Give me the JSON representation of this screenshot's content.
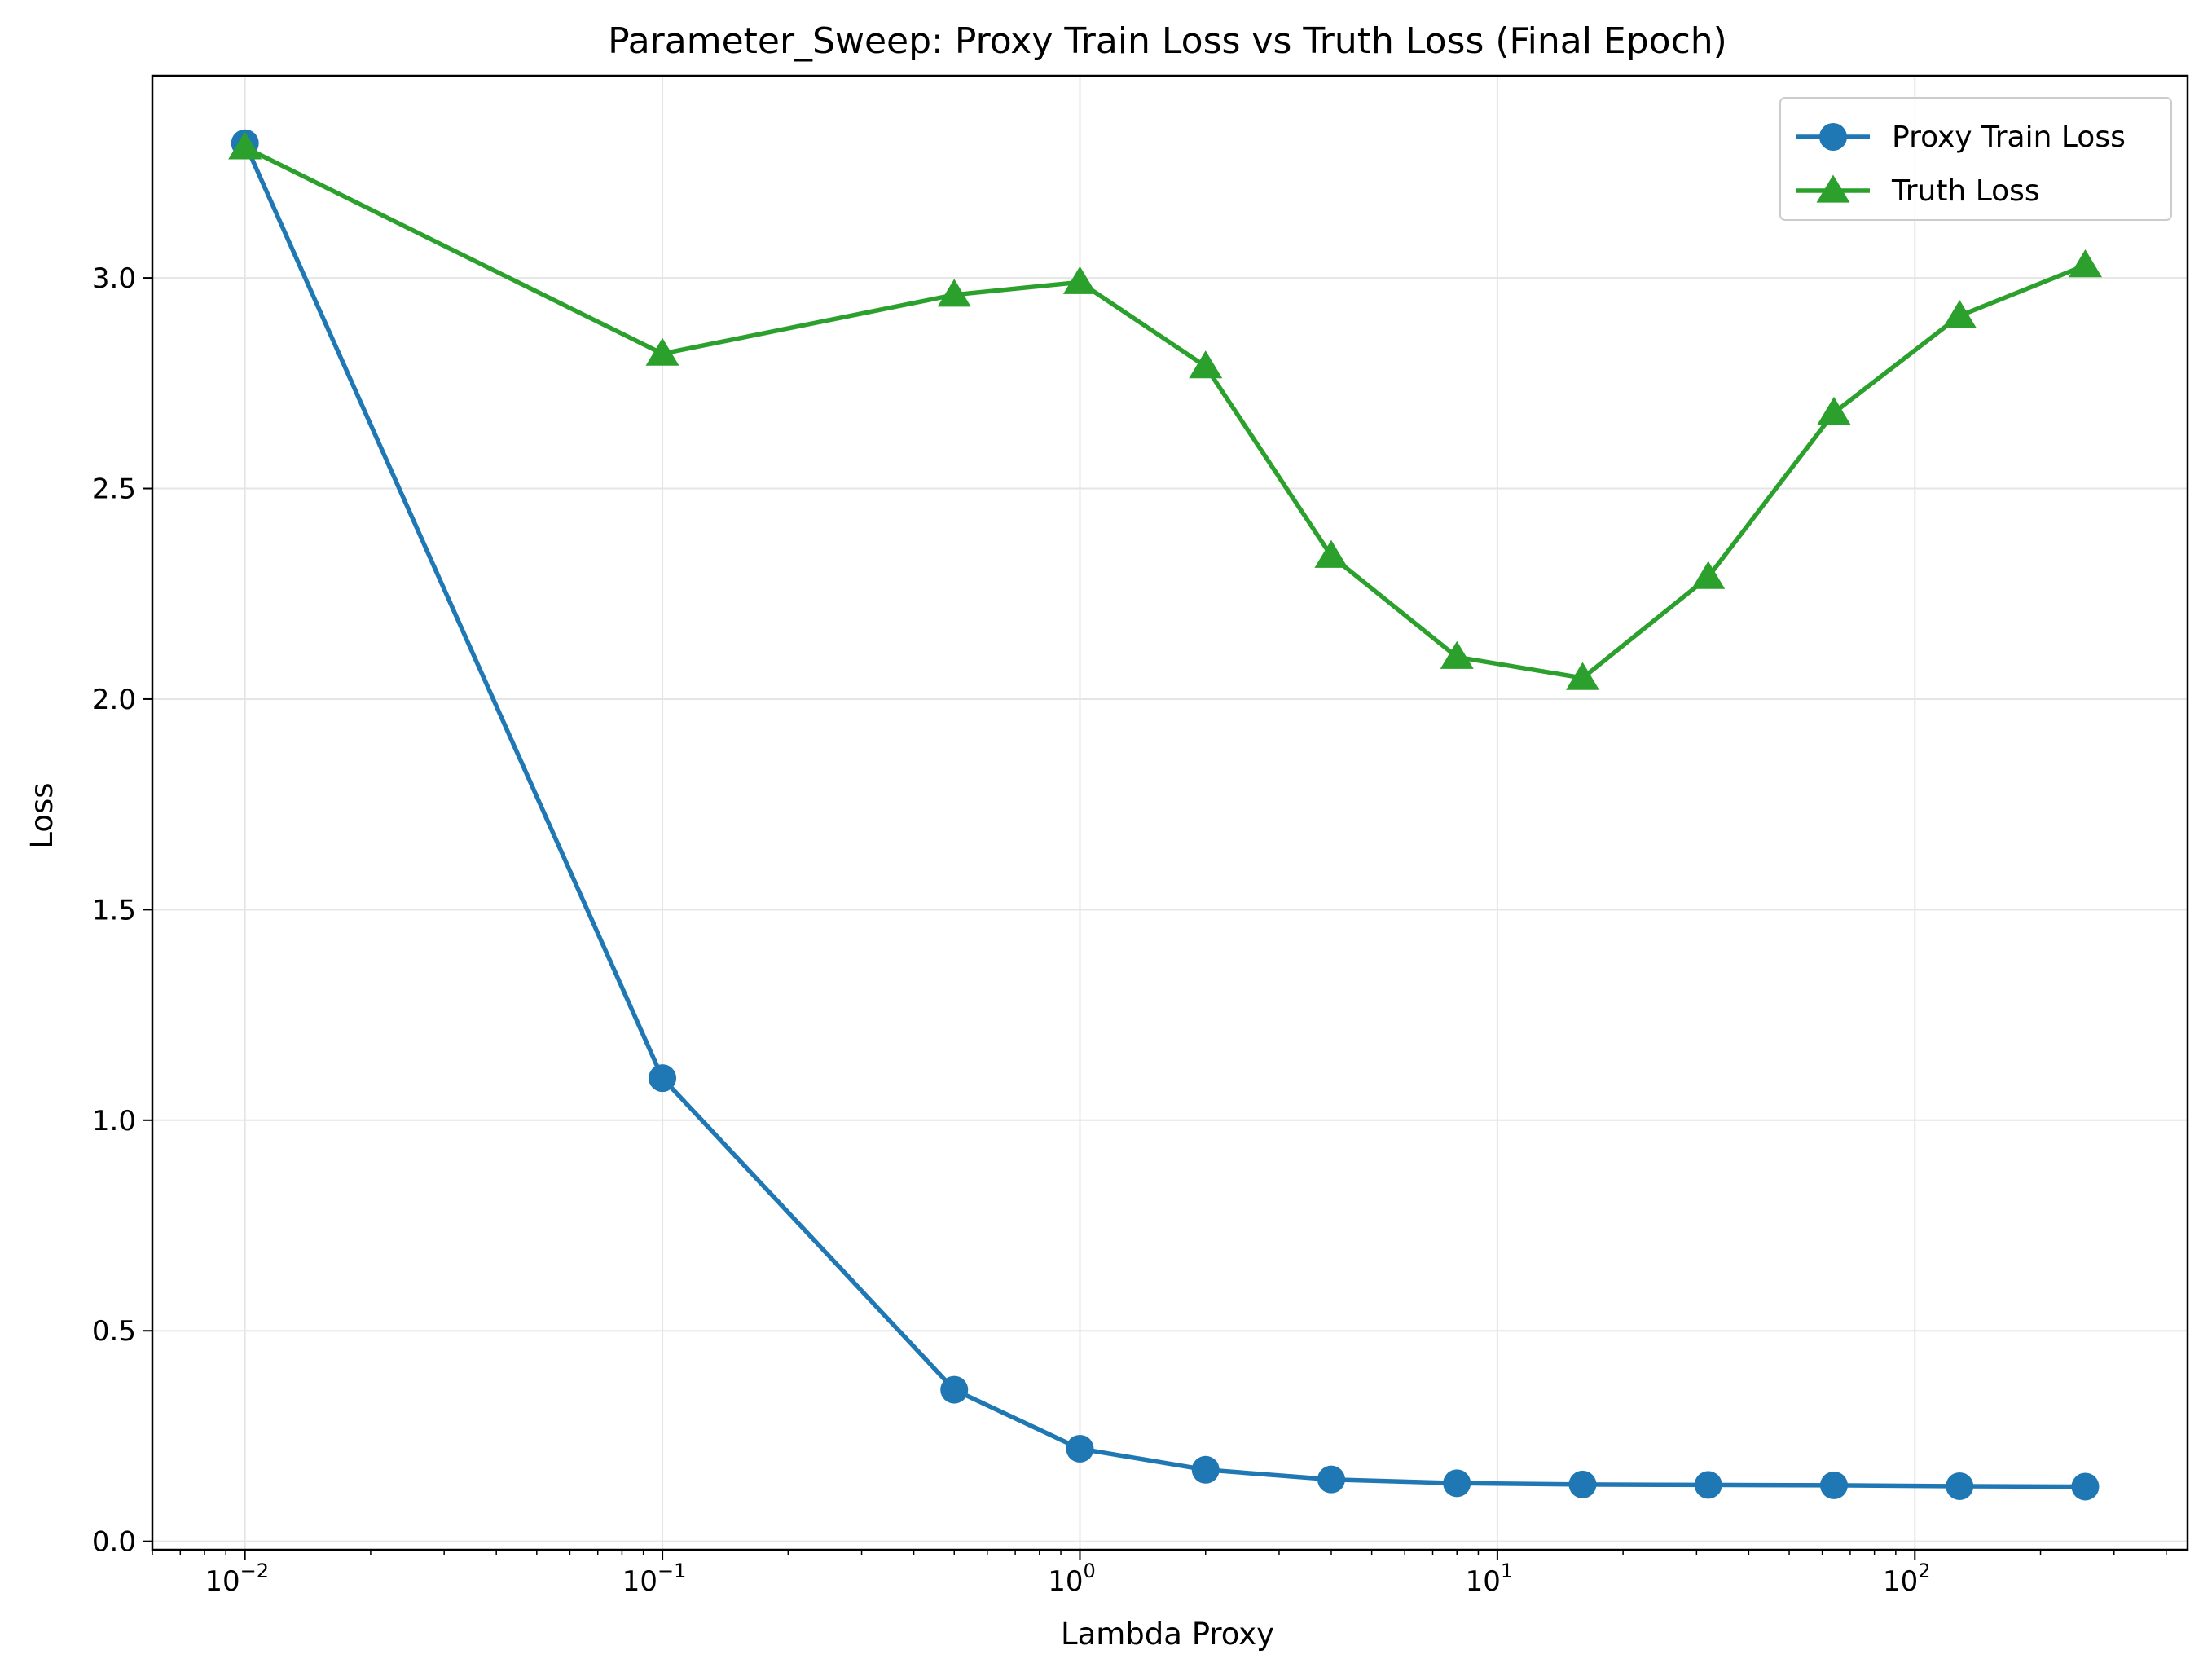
{
  "chart_data": {
    "type": "line",
    "title": "Parameter_Sweep: Proxy Train Loss vs Truth Loss (Final Epoch)",
    "xlabel": "Lambda Proxy",
    "ylabel": "Loss",
    "xscale": "log",
    "xlim": [
      0.006,
      450
    ],
    "ylim": [
      -0.02,
      3.48
    ],
    "x_ticks": [
      {
        "value": 0.01,
        "base": "10",
        "exp": "−2"
      },
      {
        "value": 0.1,
        "base": "10",
        "exp": "−1"
      },
      {
        "value": 1,
        "base": "10",
        "exp": "0"
      },
      {
        "value": 10,
        "base": "10",
        "exp": "1"
      },
      {
        "value": 100,
        "base": "10",
        "exp": "2"
      }
    ],
    "y_ticks": [
      "0.0",
      "0.5",
      "1.0",
      "1.5",
      "2.0",
      "2.5",
      "3.0"
    ],
    "grid": true,
    "legend_position": "top-right",
    "x": [
      0.01,
      0.1,
      0.5,
      1,
      2,
      4,
      8,
      16,
      32,
      64,
      128,
      256
    ],
    "series": [
      {
        "name": "Proxy Train Loss",
        "color": "#1f77b4",
        "marker": "circle",
        "values": [
          3.32,
          1.1,
          0.36,
          0.22,
          0.17,
          0.147,
          0.138,
          0.135,
          0.134,
          0.133,
          0.131,
          0.13
        ]
      },
      {
        "name": "Truth Loss",
        "color": "#2ca02c",
        "marker": "triangle",
        "values": [
          3.31,
          2.82,
          2.96,
          2.99,
          2.79,
          2.34,
          2.1,
          2.05,
          2.29,
          2.68,
          2.91,
          3.03
        ]
      }
    ]
  }
}
